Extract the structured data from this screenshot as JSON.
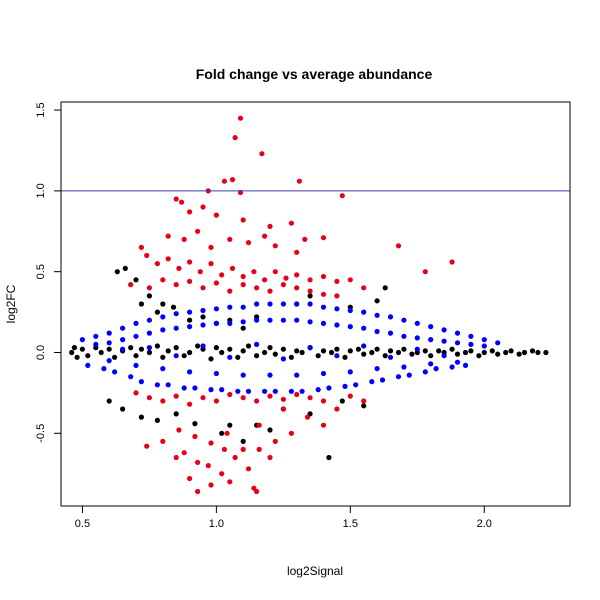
{
  "chart_data": {
    "type": "scatter",
    "title": "Fold change vs average abundance",
    "xlabel": "log2Signal",
    "ylabel": "log2FC",
    "xlim": [
      0.42,
      2.32
    ],
    "ylim": [
      -0.95,
      1.55
    ],
    "x_ticks": [
      0.5,
      1.0,
      1.5,
      2.0
    ],
    "x_tick_labels": [
      "0.5",
      "1.0",
      "1.5",
      "2.0"
    ],
    "y_ticks": [
      -0.5,
      0.0,
      0.5,
      1.0,
      1.5
    ],
    "y_tick_labels": [
      "-0.5",
      "0.0",
      "0.5",
      "1.0",
      "1.5"
    ],
    "grid": false,
    "hline": {
      "y": 1.0,
      "color": "#3b3bb3"
    },
    "colors": {
      "black": "#000000",
      "blue": "#0000ff",
      "red": "#e8001a"
    },
    "series": [
      {
        "color": "black",
        "x": [
          0.46,
          0.47,
          0.48,
          0.5,
          0.52,
          0.55,
          0.57,
          0.6,
          0.62,
          0.65,
          0.68,
          0.7,
          0.72,
          0.75,
          0.78,
          0.8,
          0.82,
          0.85,
          0.88,
          0.9,
          0.93,
          0.95,
          0.98,
          1.0,
          1.02,
          1.05,
          1.08,
          1.1,
          1.12,
          1.15,
          1.18,
          1.2,
          1.22,
          1.25,
          1.28,
          1.3,
          1.32,
          1.35,
          1.38,
          1.4,
          1.43,
          1.45,
          1.48,
          1.5,
          1.53,
          1.55,
          1.58,
          1.6,
          1.63,
          1.65,
          1.68,
          1.7,
          1.73,
          1.75,
          1.78,
          1.8,
          1.83,
          1.85,
          1.88,
          1.9,
          1.93,
          1.95,
          1.98,
          2.0,
          2.03,
          2.05,
          2.08,
          2.1,
          2.13,
          2.15,
          2.18,
          2.2,
          2.23,
          0.63,
          0.66,
          0.7,
          0.72,
          0.75,
          0.78,
          0.8,
          0.84,
          0.9,
          0.95,
          1.0,
          1.05,
          1.1,
          1.15,
          1.3,
          1.35,
          1.5,
          1.6,
          1.63,
          0.6,
          0.65,
          0.72,
          0.78,
          0.85,
          0.92,
          1.02,
          1.05,
          1.1,
          1.15,
          1.2,
          1.25,
          1.35,
          1.42,
          1.47,
          1.55
        ],
        "y": [
          0.0,
          0.03,
          -0.03,
          0.02,
          -0.02,
          0.03,
          0.0,
          0.02,
          -0.03,
          0.01,
          0.03,
          -0.02,
          0.02,
          0.0,
          0.04,
          -0.03,
          0.01,
          0.03,
          -0.02,
          0.0,
          0.04,
          0.02,
          -0.04,
          0.03,
          0.0,
          0.02,
          -0.03,
          0.01,
          0.04,
          -0.02,
          0.0,
          0.03,
          -0.01,
          0.02,
          -0.03,
          0.01,
          0.0,
          0.03,
          -0.02,
          0.01,
          0.0,
          0.02,
          -0.03,
          0.01,
          0.02,
          -0.01,
          0.0,
          0.02,
          -0.02,
          0.01,
          0.0,
          0.02,
          -0.01,
          0.0,
          0.01,
          -0.02,
          0.01,
          0.0,
          0.02,
          -0.01,
          0.0,
          0.01,
          -0.02,
          0.0,
          0.01,
          -0.01,
          0.0,
          0.01,
          -0.01,
          0.0,
          0.01,
          0.0,
          0.0,
          0.5,
          0.52,
          0.45,
          0.3,
          0.35,
          0.25,
          0.3,
          0.28,
          0.2,
          0.22,
          0.18,
          0.2,
          0.15,
          0.22,
          0.3,
          0.35,
          0.28,
          0.32,
          0.4,
          -0.3,
          -0.35,
          -0.4,
          -0.42,
          -0.38,
          -0.44,
          -0.5,
          -0.45,
          -0.55,
          -0.45,
          -0.48,
          -0.35,
          -0.38,
          -0.65,
          -0.3,
          -0.33
        ]
      },
      {
        "color": "blue",
        "x": [
          0.5,
          0.52,
          0.55,
          0.58,
          0.6,
          0.62,
          0.65,
          0.68,
          0.7,
          0.72,
          0.75,
          0.78,
          0.8,
          0.82,
          0.85,
          0.88,
          0.9,
          0.92,
          0.95,
          0.98,
          1.0,
          1.02,
          1.05,
          1.08,
          1.1,
          1.12,
          1.15,
          1.18,
          1.2,
          1.22,
          1.25,
          1.28,
          1.3,
          1.32,
          1.35,
          1.38,
          1.4,
          1.42,
          1.45,
          1.48,
          1.5,
          1.52,
          1.55,
          1.58,
          1.6,
          1.62,
          1.65,
          1.68,
          1.7,
          1.72,
          1.75,
          1.78,
          1.8,
          1.82,
          1.85,
          1.88,
          1.9,
          1.93,
          1.95,
          2.0,
          2.05,
          0.55,
          0.6,
          0.65,
          0.7,
          0.75,
          0.8,
          0.85,
          0.9,
          0.95,
          1.0,
          1.05,
          1.1,
          1.15,
          1.2,
          1.25,
          1.3,
          1.35,
          1.4,
          1.45,
          1.5,
          1.55,
          1.6,
          1.65,
          1.7,
          1.75,
          1.8,
          1.85,
          1.9,
          1.95,
          2.0,
          0.6,
          0.7,
          0.8,
          0.9,
          1.0,
          1.1,
          1.2,
          1.3,
          1.4,
          1.5,
          1.6,
          1.7,
          1.8,
          1.9,
          0.65,
          0.75,
          0.85,
          0.95,
          1.05,
          1.15,
          1.25,
          1.35,
          1.45,
          1.55,
          1.65,
          1.75,
          1.85
        ],
        "y": [
          0.08,
          -0.08,
          0.1,
          -0.1,
          0.12,
          -0.12,
          0.15,
          -0.15,
          0.18,
          -0.18,
          0.2,
          -0.2,
          0.22,
          -0.2,
          0.24,
          -0.22,
          0.25,
          -0.22,
          0.26,
          -0.23,
          0.27,
          -0.23,
          0.28,
          -0.24,
          0.28,
          -0.24,
          0.3,
          -0.24,
          0.3,
          -0.24,
          0.3,
          -0.24,
          0.3,
          -0.24,
          0.3,
          -0.23,
          0.28,
          -0.22,
          0.27,
          -0.21,
          0.26,
          -0.2,
          0.25,
          -0.18,
          0.23,
          -0.17,
          0.22,
          -0.15,
          0.2,
          -0.14,
          0.18,
          -0.12,
          0.16,
          -0.1,
          0.14,
          -0.09,
          0.12,
          -0.08,
          0.1,
          0.08,
          0.06,
          0.05,
          0.06,
          0.08,
          0.1,
          0.12,
          0.14,
          0.15,
          0.16,
          0.17,
          0.18,
          0.18,
          0.19,
          0.2,
          0.2,
          0.2,
          0.2,
          0.19,
          0.18,
          0.17,
          0.16,
          0.15,
          0.13,
          0.12,
          0.1,
          0.09,
          0.08,
          0.07,
          0.06,
          0.05,
          0.04,
          -0.05,
          -0.08,
          -0.1,
          -0.12,
          -0.13,
          -0.14,
          -0.14,
          -0.14,
          -0.13,
          -0.12,
          -0.1,
          -0.09,
          -0.07,
          -0.06,
          0.02,
          0.03,
          -0.02,
          0.04,
          -0.03,
          0.05,
          -0.04,
          0.03,
          -0.02,
          0.04,
          -0.03,
          0.02,
          -0.02
        ]
      },
      {
        "color": "red",
        "x": [
          1.09,
          1.07,
          1.17,
          0.97,
          1.03,
          1.06,
          1.09,
          1.31,
          1.47,
          0.85,
          0.87,
          0.9,
          0.95,
          1.0,
          1.1,
          1.2,
          1.28,
          0.82,
          0.88,
          0.93,
          0.98,
          1.05,
          1.12,
          1.18,
          1.22,
          1.3,
          1.33,
          1.4,
          0.72,
          0.74,
          0.78,
          0.82,
          0.86,
          0.9,
          0.94,
          0.98,
          1.02,
          1.06,
          1.1,
          1.14,
          1.18,
          1.22,
          1.26,
          1.3,
          1.35,
          1.4,
          1.45,
          1.5,
          1.55,
          1.68,
          1.78,
          1.88,
          0.68,
          0.75,
          0.8,
          0.85,
          0.9,
          0.95,
          1.0,
          1.05,
          1.1,
          1.15,
          1.2,
          1.25,
          1.3,
          1.35,
          1.4,
          1.45,
          0.7,
          0.75,
          0.8,
          0.85,
          0.9,
          0.95,
          1.0,
          1.05,
          1.1,
          1.15,
          1.2,
          1.25,
          1.3,
          1.35,
          1.4,
          1.45,
          1.5,
          1.55,
          0.74,
          0.8,
          0.86,
          0.92,
          0.98,
          1.04,
          1.1,
          1.16,
          1.22,
          1.28,
          1.34,
          1.4,
          0.88,
          0.93,
          0.97,
          1.02,
          1.07,
          1.12,
          1.16,
          1.2,
          0.9,
          0.98,
          1.05,
          1.14,
          1.15,
          1.03,
          0.85,
          0.93,
          1.25
        ],
        "y": [
          1.45,
          1.33,
          1.23,
          1.0,
          1.06,
          1.07,
          0.99,
          1.06,
          0.97,
          0.95,
          0.93,
          0.87,
          0.9,
          0.85,
          0.82,
          0.78,
          0.8,
          0.72,
          0.7,
          0.75,
          0.65,
          0.7,
          0.68,
          0.72,
          0.66,
          0.62,
          0.7,
          0.71,
          0.65,
          0.6,
          0.55,
          0.58,
          0.52,
          0.56,
          0.5,
          0.55,
          0.48,
          0.52,
          0.47,
          0.5,
          0.45,
          0.5,
          0.46,
          0.48,
          0.45,
          0.47,
          0.44,
          0.45,
          0.4,
          0.66,
          0.5,
          0.56,
          0.42,
          0.4,
          0.45,
          0.42,
          0.44,
          0.4,
          0.43,
          0.38,
          0.42,
          0.4,
          0.38,
          0.42,
          0.4,
          0.38,
          0.36,
          0.35,
          -0.25,
          -0.28,
          -0.3,
          -0.27,
          -0.32,
          -0.28,
          -0.3,
          -0.26,
          -0.28,
          -0.3,
          -0.27,
          -0.29,
          -0.26,
          -0.28,
          -0.3,
          -0.35,
          -0.27,
          -0.3,
          -0.58,
          -0.55,
          -0.48,
          -0.52,
          -0.56,
          -0.5,
          -0.6,
          -0.45,
          -0.55,
          -0.5,
          -0.4,
          -0.45,
          -0.62,
          -0.68,
          -0.7,
          -0.75,
          -0.65,
          -0.72,
          -0.6,
          -0.65,
          -0.78,
          -0.82,
          -0.8,
          -0.84,
          -0.86,
          -0.6,
          -0.65,
          -0.86,
          -0.35
        ]
      }
    ]
  }
}
